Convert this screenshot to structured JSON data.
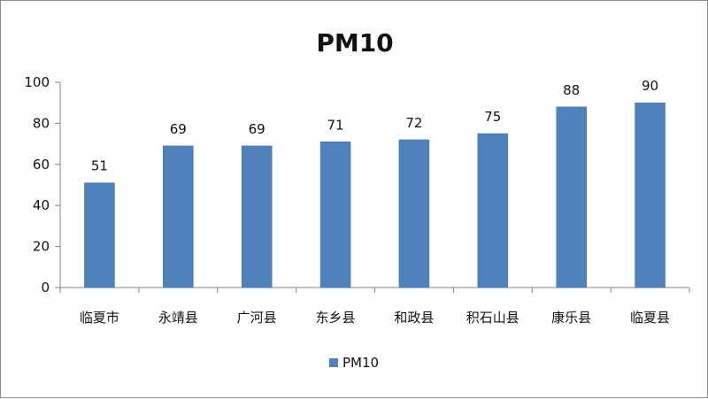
{
  "chart_data": {
    "type": "bar",
    "title": "PM10",
    "categories": [
      "临夏市",
      "永靖县",
      "广河县",
      "东乡县",
      "和政县",
      "积石山县",
      "康乐县",
      "临夏县"
    ],
    "series": [
      {
        "name": "PM10",
        "values": [
          51,
          69,
          69,
          71,
          72,
          75,
          88,
          90
        ],
        "color": "#4F81BD"
      }
    ],
    "ylim": [
      0,
      100
    ],
    "yticks": [
      0,
      20,
      40,
      60,
      80,
      100
    ],
    "grid": false,
    "data_labels": true,
    "legend_position": "bottom"
  }
}
